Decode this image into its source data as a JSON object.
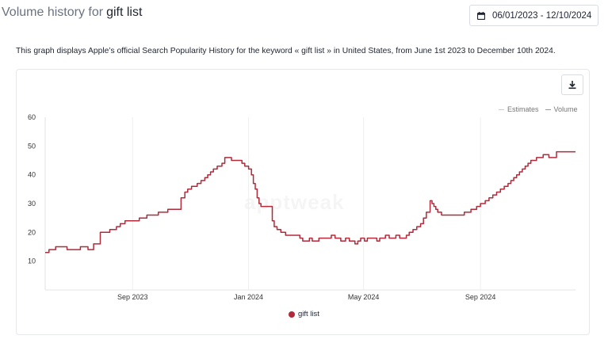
{
  "header": {
    "title_prefix": "Volume history for",
    "keyword": "gift list",
    "date_range": "06/01/2023 - 12/10/2024"
  },
  "description": "This graph displays Apple’s official Search Popularity History for the keyword « gift list » in United States, from June 1st 2023 to December 10th 2024.",
  "legend_top": [
    {
      "label": "Estimates",
      "color": "#cccccc"
    },
    {
      "label": "Volume",
      "color": "#999999"
    }
  ],
  "watermark": "apptweak",
  "icons": {
    "calendar": "calendar-icon",
    "download": "download-icon"
  },
  "chart_data": {
    "type": "line",
    "title": "",
    "xlabel": "",
    "ylabel": "",
    "x_range": [
      "2023-06-01",
      "2024-12-10"
    ],
    "ylim": [
      0,
      60
    ],
    "yticks": [
      10,
      20,
      30,
      40,
      50,
      60
    ],
    "xticks": [
      {
        "date": "2023-09-01",
        "label": "Sep 2023"
      },
      {
        "date": "2024-01-01",
        "label": "Jan 2024"
      },
      {
        "date": "2024-05-01",
        "label": "May 2024"
      },
      {
        "date": "2024-09-01",
        "label": "Sep 2024"
      }
    ],
    "grid": {
      "x": true,
      "y": false
    },
    "legend": "bottom",
    "series": [
      {
        "name": "gift list",
        "color": "#b02a3a",
        "points": [
          [
            "2023-06-01",
            13
          ],
          [
            "2023-06-05",
            14
          ],
          [
            "2023-06-12",
            15
          ],
          [
            "2023-06-24",
            14
          ],
          [
            "2023-07-08",
            15
          ],
          [
            "2023-07-16",
            14
          ],
          [
            "2023-07-22",
            16
          ],
          [
            "2023-07-29",
            20
          ],
          [
            "2023-08-08",
            21
          ],
          [
            "2023-08-15",
            22
          ],
          [
            "2023-08-19",
            23
          ],
          [
            "2023-08-24",
            24
          ],
          [
            "2023-09-08",
            25
          ],
          [
            "2023-09-16",
            26
          ],
          [
            "2023-09-28",
            27
          ],
          [
            "2023-10-08",
            28
          ],
          [
            "2023-10-22",
            32
          ],
          [
            "2023-10-26",
            34
          ],
          [
            "2023-10-29",
            35
          ],
          [
            "2023-11-02",
            36
          ],
          [
            "2023-11-08",
            37
          ],
          [
            "2023-11-12",
            38
          ],
          [
            "2023-11-16",
            39
          ],
          [
            "2023-11-19",
            40
          ],
          [
            "2023-11-22",
            41
          ],
          [
            "2023-11-25",
            42
          ],
          [
            "2023-11-29",
            43
          ],
          [
            "2023-12-04",
            44
          ],
          [
            "2023-12-07",
            46
          ],
          [
            "2023-12-14",
            45
          ],
          [
            "2023-12-25",
            44
          ],
          [
            "2023-12-28",
            43
          ],
          [
            "2024-01-01",
            42
          ],
          [
            "2024-01-04",
            40
          ],
          [
            "2024-01-06",
            37
          ],
          [
            "2024-01-08",
            35
          ],
          [
            "2024-01-10",
            32
          ],
          [
            "2024-01-12",
            30
          ],
          [
            "2024-01-14",
            29
          ],
          [
            "2024-01-24",
            29
          ],
          [
            "2024-01-26",
            24
          ],
          [
            "2024-01-28",
            22
          ],
          [
            "2024-01-31",
            21
          ],
          [
            "2024-02-04",
            20
          ],
          [
            "2024-02-09",
            19
          ],
          [
            "2024-02-24",
            18
          ],
          [
            "2024-02-27",
            17
          ],
          [
            "2024-03-05",
            18
          ],
          [
            "2024-03-08",
            17
          ],
          [
            "2024-03-15",
            18
          ],
          [
            "2024-03-28",
            19
          ],
          [
            "2024-04-01",
            18
          ],
          [
            "2024-04-07",
            17
          ],
          [
            "2024-04-12",
            18
          ],
          [
            "2024-04-16",
            17
          ],
          [
            "2024-04-22",
            16
          ],
          [
            "2024-04-25",
            17
          ],
          [
            "2024-04-28",
            18
          ],
          [
            "2024-05-02",
            17
          ],
          [
            "2024-05-05",
            18
          ],
          [
            "2024-05-15",
            17
          ],
          [
            "2024-05-18",
            18
          ],
          [
            "2024-05-24",
            19
          ],
          [
            "2024-05-28",
            18
          ],
          [
            "2024-06-04",
            19
          ],
          [
            "2024-06-08",
            18
          ],
          [
            "2024-06-15",
            19
          ],
          [
            "2024-06-18",
            20
          ],
          [
            "2024-06-22",
            21
          ],
          [
            "2024-06-26",
            22
          ],
          [
            "2024-06-30",
            23
          ],
          [
            "2024-07-03",
            25
          ],
          [
            "2024-07-06",
            27
          ],
          [
            "2024-07-10",
            31
          ],
          [
            "2024-07-12",
            30
          ],
          [
            "2024-07-14",
            29
          ],
          [
            "2024-07-16",
            28
          ],
          [
            "2024-07-18",
            27
          ],
          [
            "2024-07-22",
            26
          ],
          [
            "2024-08-15",
            27
          ],
          [
            "2024-08-22",
            28
          ],
          [
            "2024-08-28",
            29
          ],
          [
            "2024-09-01",
            30
          ],
          [
            "2024-09-06",
            31
          ],
          [
            "2024-09-10",
            32
          ],
          [
            "2024-09-14",
            33
          ],
          [
            "2024-09-18",
            34
          ],
          [
            "2024-09-22",
            35
          ],
          [
            "2024-09-26",
            36
          ],
          [
            "2024-09-30",
            37
          ],
          [
            "2024-10-03",
            38
          ],
          [
            "2024-10-06",
            39
          ],
          [
            "2024-10-09",
            40
          ],
          [
            "2024-10-12",
            41
          ],
          [
            "2024-10-15",
            42
          ],
          [
            "2024-10-18",
            43
          ],
          [
            "2024-10-21",
            44
          ],
          [
            "2024-10-24",
            45
          ],
          [
            "2024-10-30",
            46
          ],
          [
            "2024-11-06",
            47
          ],
          [
            "2024-11-12",
            46
          ],
          [
            "2024-11-20",
            48
          ],
          [
            "2024-12-10",
            48
          ]
        ]
      }
    ]
  }
}
